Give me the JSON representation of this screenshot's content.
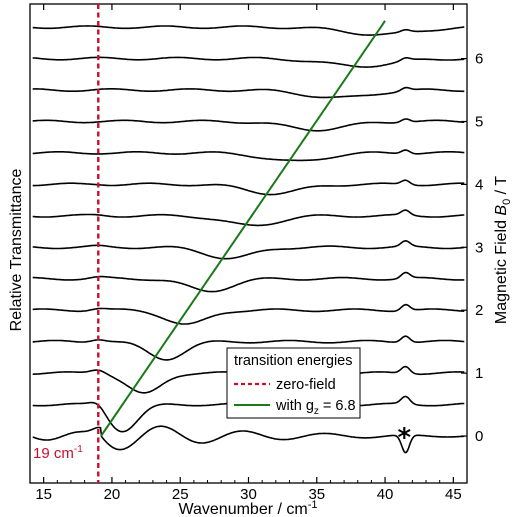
{
  "chart_data": {
    "type": "line",
    "title": "",
    "xlabel": "Wavenumber / cm",
    "xlabel_sup": "-1",
    "ylabel_left": "Relative Transmittance",
    "ylabel_right_prefix": "Magnetic Field ",
    "ylabel_right_symbol": "B",
    "ylabel_right_sub": "0",
    "ylabel_right_suffix": " / T",
    "xlim": [
      14,
      46
    ],
    "x_ticks": [
      15,
      20,
      25,
      30,
      35,
      40,
      45
    ],
    "right_ticks": [
      0,
      1,
      2,
      3,
      4,
      5,
      6
    ],
    "field_values_T": [
      0,
      0.5,
      1,
      1.5,
      2,
      2.5,
      3,
      3.5,
      4,
      4.5,
      5,
      5.5,
      6,
      6.5
    ],
    "zero_field_energy": 19,
    "zero_field_annotation": "19 cm",
    "zero_field_annotation_sup": "-1",
    "gz": 6.8,
    "transition_line": {
      "x_start": 19.2,
      "field_start": 0,
      "x_end": 40.0,
      "field_end": 6.6
    },
    "star_annotation": "*",
    "star_x": 41.5,
    "legend": {
      "title": "transition energies",
      "items": [
        {
          "label": "zero-field",
          "style": "dashed",
          "color": "#c8102e"
        },
        {
          "label": "with g",
          "label_sub": "z",
          "label_suffix": " = 6.8",
          "style": "solid",
          "color": "#1a7a1a"
        }
      ],
      "placement": "lower-right"
    },
    "colors": {
      "traces": "#000000",
      "zero_field": "#c8102e",
      "transition": "#1a7a1a"
    }
  }
}
